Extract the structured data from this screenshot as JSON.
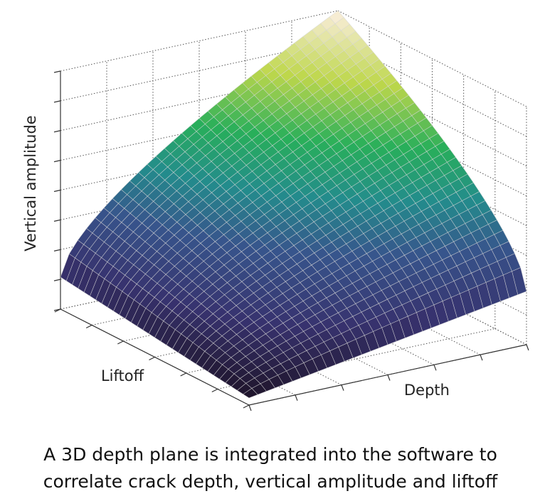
{
  "axes": {
    "z_label": "Vertical amplitude",
    "x_label": "Liftoff",
    "y_label": "Depth"
  },
  "caption": [
    "A 3D depth plane is integrated into the software to",
    "correlate crack depth, vertical amplitude and liftoff"
  ]
}
